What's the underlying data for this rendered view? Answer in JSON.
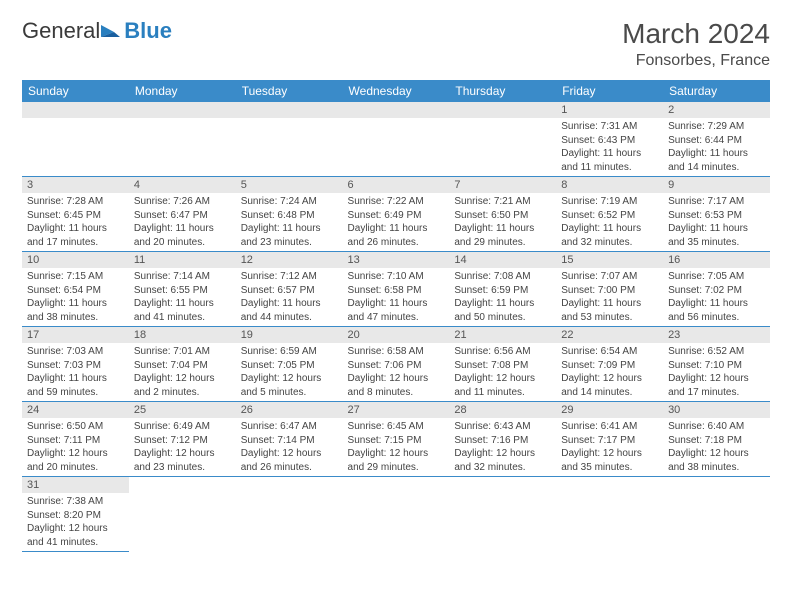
{
  "logo": {
    "text1": "General",
    "text2": "Blue"
  },
  "title": "March 2024",
  "location": "Fonsorbes, France",
  "colors": {
    "header_bg": "#3a8bc9",
    "header_text": "#ffffff",
    "daynum_bg": "#e8e8e8",
    "border": "#3a8bc9",
    "body_text": "#444444"
  },
  "weekdays": [
    "Sunday",
    "Monday",
    "Tuesday",
    "Wednesday",
    "Thursday",
    "Friday",
    "Saturday"
  ],
  "weeks": [
    [
      null,
      null,
      null,
      null,
      null,
      {
        "n": "1",
        "sr": "Sunrise: 7:31 AM",
        "ss": "Sunset: 6:43 PM",
        "dl": "Daylight: 11 hours and 11 minutes."
      },
      {
        "n": "2",
        "sr": "Sunrise: 7:29 AM",
        "ss": "Sunset: 6:44 PM",
        "dl": "Daylight: 11 hours and 14 minutes."
      }
    ],
    [
      {
        "n": "3",
        "sr": "Sunrise: 7:28 AM",
        "ss": "Sunset: 6:45 PM",
        "dl": "Daylight: 11 hours and 17 minutes."
      },
      {
        "n": "4",
        "sr": "Sunrise: 7:26 AM",
        "ss": "Sunset: 6:47 PM",
        "dl": "Daylight: 11 hours and 20 minutes."
      },
      {
        "n": "5",
        "sr": "Sunrise: 7:24 AM",
        "ss": "Sunset: 6:48 PM",
        "dl": "Daylight: 11 hours and 23 minutes."
      },
      {
        "n": "6",
        "sr": "Sunrise: 7:22 AM",
        "ss": "Sunset: 6:49 PM",
        "dl": "Daylight: 11 hours and 26 minutes."
      },
      {
        "n": "7",
        "sr": "Sunrise: 7:21 AM",
        "ss": "Sunset: 6:50 PM",
        "dl": "Daylight: 11 hours and 29 minutes."
      },
      {
        "n": "8",
        "sr": "Sunrise: 7:19 AM",
        "ss": "Sunset: 6:52 PM",
        "dl": "Daylight: 11 hours and 32 minutes."
      },
      {
        "n": "9",
        "sr": "Sunrise: 7:17 AM",
        "ss": "Sunset: 6:53 PM",
        "dl": "Daylight: 11 hours and 35 minutes."
      }
    ],
    [
      {
        "n": "10",
        "sr": "Sunrise: 7:15 AM",
        "ss": "Sunset: 6:54 PM",
        "dl": "Daylight: 11 hours and 38 minutes."
      },
      {
        "n": "11",
        "sr": "Sunrise: 7:14 AM",
        "ss": "Sunset: 6:55 PM",
        "dl": "Daylight: 11 hours and 41 minutes."
      },
      {
        "n": "12",
        "sr": "Sunrise: 7:12 AM",
        "ss": "Sunset: 6:57 PM",
        "dl": "Daylight: 11 hours and 44 minutes."
      },
      {
        "n": "13",
        "sr": "Sunrise: 7:10 AM",
        "ss": "Sunset: 6:58 PM",
        "dl": "Daylight: 11 hours and 47 minutes."
      },
      {
        "n": "14",
        "sr": "Sunrise: 7:08 AM",
        "ss": "Sunset: 6:59 PM",
        "dl": "Daylight: 11 hours and 50 minutes."
      },
      {
        "n": "15",
        "sr": "Sunrise: 7:07 AM",
        "ss": "Sunset: 7:00 PM",
        "dl": "Daylight: 11 hours and 53 minutes."
      },
      {
        "n": "16",
        "sr": "Sunrise: 7:05 AM",
        "ss": "Sunset: 7:02 PM",
        "dl": "Daylight: 11 hours and 56 minutes."
      }
    ],
    [
      {
        "n": "17",
        "sr": "Sunrise: 7:03 AM",
        "ss": "Sunset: 7:03 PM",
        "dl": "Daylight: 11 hours and 59 minutes."
      },
      {
        "n": "18",
        "sr": "Sunrise: 7:01 AM",
        "ss": "Sunset: 7:04 PM",
        "dl": "Daylight: 12 hours and 2 minutes."
      },
      {
        "n": "19",
        "sr": "Sunrise: 6:59 AM",
        "ss": "Sunset: 7:05 PM",
        "dl": "Daylight: 12 hours and 5 minutes."
      },
      {
        "n": "20",
        "sr": "Sunrise: 6:58 AM",
        "ss": "Sunset: 7:06 PM",
        "dl": "Daylight: 12 hours and 8 minutes."
      },
      {
        "n": "21",
        "sr": "Sunrise: 6:56 AM",
        "ss": "Sunset: 7:08 PM",
        "dl": "Daylight: 12 hours and 11 minutes."
      },
      {
        "n": "22",
        "sr": "Sunrise: 6:54 AM",
        "ss": "Sunset: 7:09 PM",
        "dl": "Daylight: 12 hours and 14 minutes."
      },
      {
        "n": "23",
        "sr": "Sunrise: 6:52 AM",
        "ss": "Sunset: 7:10 PM",
        "dl": "Daylight: 12 hours and 17 minutes."
      }
    ],
    [
      {
        "n": "24",
        "sr": "Sunrise: 6:50 AM",
        "ss": "Sunset: 7:11 PM",
        "dl": "Daylight: 12 hours and 20 minutes."
      },
      {
        "n": "25",
        "sr": "Sunrise: 6:49 AM",
        "ss": "Sunset: 7:12 PM",
        "dl": "Daylight: 12 hours and 23 minutes."
      },
      {
        "n": "26",
        "sr": "Sunrise: 6:47 AM",
        "ss": "Sunset: 7:14 PM",
        "dl": "Daylight: 12 hours and 26 minutes."
      },
      {
        "n": "27",
        "sr": "Sunrise: 6:45 AM",
        "ss": "Sunset: 7:15 PM",
        "dl": "Daylight: 12 hours and 29 minutes."
      },
      {
        "n": "28",
        "sr": "Sunrise: 6:43 AM",
        "ss": "Sunset: 7:16 PM",
        "dl": "Daylight: 12 hours and 32 minutes."
      },
      {
        "n": "29",
        "sr": "Sunrise: 6:41 AM",
        "ss": "Sunset: 7:17 PM",
        "dl": "Daylight: 12 hours and 35 minutes."
      },
      {
        "n": "30",
        "sr": "Sunrise: 6:40 AM",
        "ss": "Sunset: 7:18 PM",
        "dl": "Daylight: 12 hours and 38 minutes."
      }
    ],
    [
      {
        "n": "31",
        "sr": "Sunrise: 7:38 AM",
        "ss": "Sunset: 8:20 PM",
        "dl": "Daylight: 12 hours and 41 minutes."
      },
      null,
      null,
      null,
      null,
      null,
      null
    ]
  ]
}
